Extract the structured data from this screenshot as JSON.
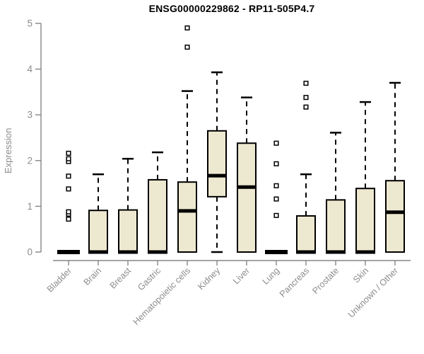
{
  "chart_data": {
    "type": "boxplot",
    "title": "ENSG00000229862 - RP11-505P4.7",
    "ylabel": "Expression",
    "ylim": [
      0,
      5
    ],
    "yticks": [
      0,
      1,
      2,
      3,
      4,
      5
    ],
    "categories": [
      "Bladder",
      "Brain",
      "Breast",
      "Gastric",
      "Hematopoietic cells",
      "Kidney",
      "Liver",
      "Lung",
      "Pancreas",
      "Prostate",
      "Skin",
      "Unknown / Other"
    ],
    "series": [
      {
        "name": "Bladder",
        "q1": 0,
        "median": 0,
        "q3": 0,
        "whisker_low": 0,
        "whisker_high": 0,
        "outliers": [
          0.72,
          0.83,
          0.88,
          1.38,
          1.66,
          1.98,
          2.04,
          2.16
        ]
      },
      {
        "name": "Brain",
        "q1": 0,
        "median": 0,
        "q3": 0.91,
        "whisker_low": 0,
        "whisker_high": 1.7,
        "outliers": []
      },
      {
        "name": "Breast",
        "q1": 0,
        "median": 0,
        "q3": 0.92,
        "whisker_low": 0,
        "whisker_high": 2.04,
        "outliers": []
      },
      {
        "name": "Gastric",
        "q1": 0,
        "median": 0,
        "q3": 1.58,
        "whisker_low": 0,
        "whisker_high": 2.18,
        "outliers": []
      },
      {
        "name": "Hematopoietic cells",
        "q1": 0,
        "median": 0.9,
        "q3": 1.53,
        "whisker_low": 0,
        "whisker_high": 3.52,
        "outliers": [
          4.48,
          4.9
        ]
      },
      {
        "name": "Kidney",
        "q1": 1.21,
        "median": 1.67,
        "q3": 2.65,
        "whisker_low": 0,
        "whisker_high": 3.93,
        "outliers": []
      },
      {
        "name": "Liver",
        "q1": 0,
        "median": 1.42,
        "q3": 2.38,
        "whisker_low": 0,
        "whisker_high": 3.38,
        "outliers": []
      },
      {
        "name": "Lung",
        "q1": 0,
        "median": 0,
        "q3": 0,
        "whisker_low": 0,
        "whisker_high": 0,
        "outliers": [
          0.8,
          1.16,
          1.45,
          1.93,
          2.38
        ]
      },
      {
        "name": "Pancreas",
        "q1": 0,
        "median": 0,
        "q3": 0.79,
        "whisker_low": 0,
        "whisker_high": 1.7,
        "outliers": [
          3.17,
          3.38,
          3.69
        ]
      },
      {
        "name": "Prostate",
        "q1": 0,
        "median": 0,
        "q3": 1.14,
        "whisker_low": 0,
        "whisker_high": 2.61,
        "outliers": []
      },
      {
        "name": "Skin",
        "q1": 0,
        "median": 0,
        "q3": 1.39,
        "whisker_low": 0,
        "whisker_high": 3.28,
        "outliers": []
      },
      {
        "name": "Unknown / Other",
        "q1": 0,
        "median": 0.87,
        "q3": 1.56,
        "whisker_low": 0,
        "whisker_high": 3.7,
        "outliers": []
      }
    ],
    "colors": {
      "box_fill": "#EDE8D0",
      "box_border": "#000000",
      "median": "#000000",
      "whisker": "#000000",
      "outlier_fill": "#FFFFFF",
      "outlier_border": "#000000",
      "axis_line": "#858585",
      "axis_text": "#8C8C8C",
      "title_text": "#000000",
      "background": "#FFFFFF"
    },
    "legend": "none",
    "grid": "off"
  }
}
